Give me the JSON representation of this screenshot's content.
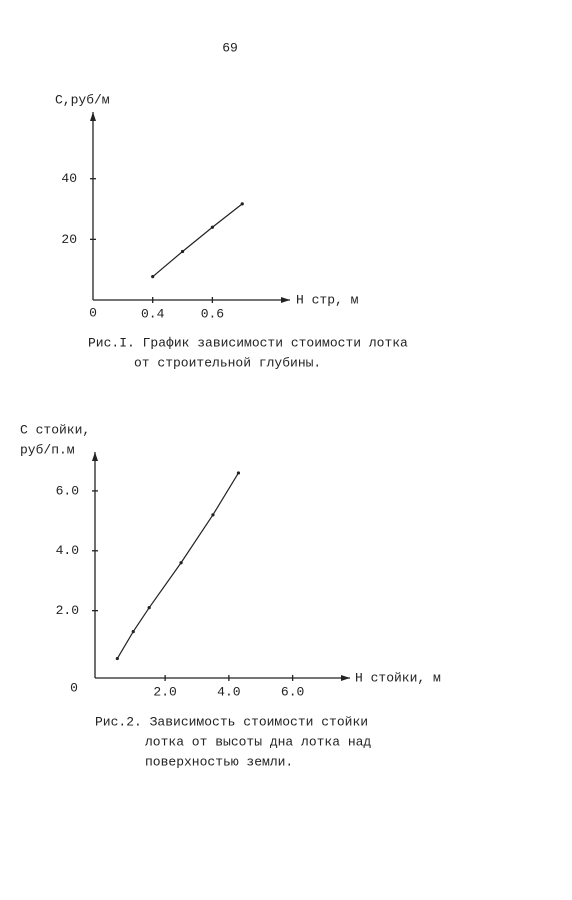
{
  "page_number": "69",
  "chart_data": [
    {
      "type": "line",
      "ylabel": [
        "С,руб/м"
      ],
      "xlabel": "Н стр, м",
      "origin_label": "0",
      "x": [
        0.4,
        0.5,
        0.6,
        0.7
      ],
      "values": [
        7.7,
        16,
        24,
        31.7
      ],
      "color": "#222",
      "xlim": [
        0.2,
        0.86
      ],
      "ylim": [
        0,
        62
      ],
      "xticks": [
        0.4,
        0.6
      ],
      "yticks": [
        20,
        40
      ],
      "caption": [
        "Рис.I. График зависимости стоимости лотка",
        "от строительной глубины."
      ]
    },
    {
      "type": "line",
      "ylabel": [
        "С стойки,",
        "руб/п.м"
      ],
      "xlabel": "Н стойки, м",
      "origin_label": "0",
      "x": [
        0.5,
        1.0,
        1.5,
        2.5,
        3.5,
        4.3
      ],
      "values": [
        0.4,
        1.3,
        2.1,
        3.6,
        5.2,
        6.6
      ],
      "color": "#222",
      "xlim": [
        -0.2,
        7.8
      ],
      "ylim": [
        -0.25,
        7.3
      ],
      "xticks": [
        {
          "value": 2,
          "label": "2.0"
        },
        {
          "value": 4,
          "label": "4.0"
        },
        {
          "value": 6,
          "label": "6.0"
        }
      ],
      "yticks": [
        {
          "value": 2,
          "label": "2.0"
        },
        {
          "value": 4,
          "label": "4.0"
        },
        {
          "value": 6,
          "label": "6.0"
        }
      ],
      "caption": [
        "Рис.2. Зависимость стоимости стойки",
        "лотка от высоты дна лотка над",
        "поверхностью земли."
      ]
    }
  ]
}
